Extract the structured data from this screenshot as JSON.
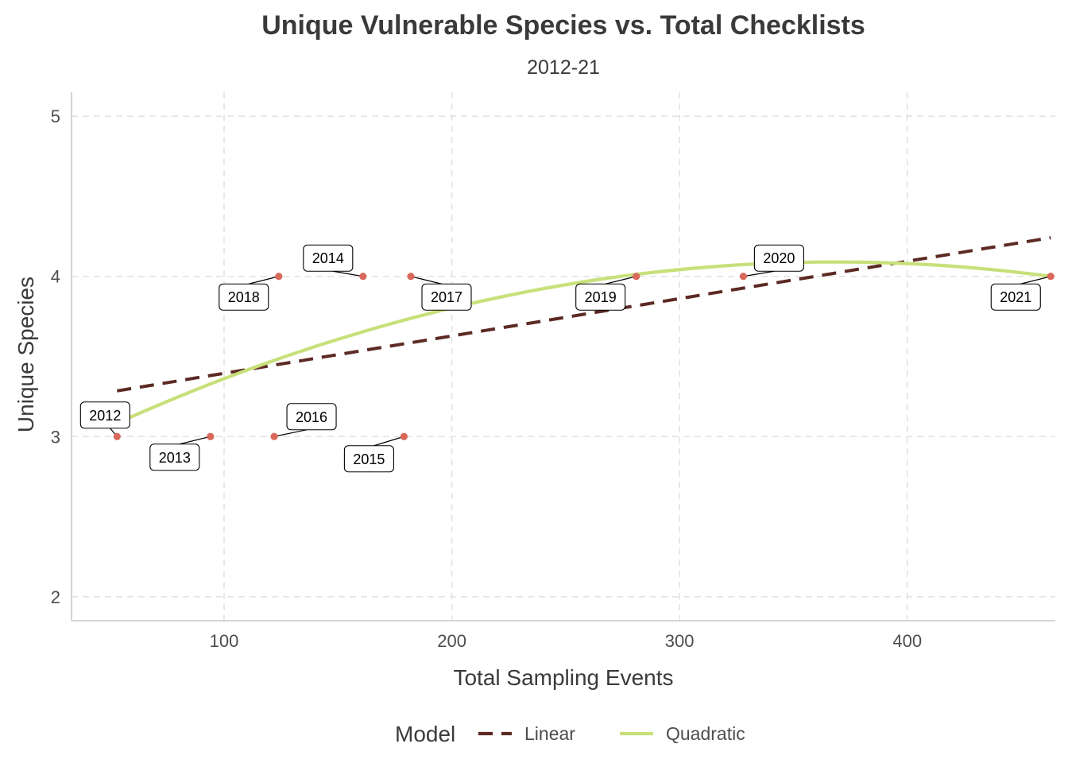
{
  "chart_data": {
    "type": "scatter",
    "title": "Unique Vulnerable Species vs. Total Checklists",
    "subtitle": "2012-21",
    "xlabel": "Total Sampling Events",
    "ylabel": "Unique Species",
    "xlim": [
      33,
      465
    ],
    "ylim": [
      1.85,
      5.15
    ],
    "x_ticks": [
      100,
      200,
      300,
      400
    ],
    "y_ticks": [
      2,
      3,
      4,
      5
    ],
    "grid": true,
    "point_color": "#d9695b",
    "points": [
      {
        "label": "2012",
        "x": 53,
        "y": 3
      },
      {
        "label": "2013",
        "x": 94,
        "y": 3
      },
      {
        "label": "2014",
        "x": 161,
        "y": 4
      },
      {
        "label": "2015",
        "x": 179,
        "y": 3
      },
      {
        "label": "2016",
        "x": 122,
        "y": 3
      },
      {
        "label": "2017",
        "x": 182,
        "y": 4
      },
      {
        "label": "2018",
        "x": 124,
        "y": 4
      },
      {
        "label": "2019",
        "x": 281,
        "y": 4
      },
      {
        "label": "2020",
        "x": 328,
        "y": 4
      },
      {
        "label": "2021",
        "x": 463,
        "y": 4
      }
    ],
    "models": [
      {
        "name": "Linear",
        "kind": "linear",
        "color": "#5c2a24",
        "dashed": true,
        "coef": [
          3.1615,
          0.0023325
        ],
        "x_range": [
          53,
          463
        ]
      },
      {
        "name": "Quadratic",
        "kind": "quadratic",
        "color": "#c8e07a",
        "dashed": false,
        "coef": [
          2.7175,
          0.0074468,
          -1.0101e-05
        ],
        "x_range": [
          53,
          463
        ]
      }
    ],
    "legend": {
      "title": "Model",
      "position": "bottom",
      "items": [
        "Linear",
        "Quadratic"
      ]
    }
  }
}
